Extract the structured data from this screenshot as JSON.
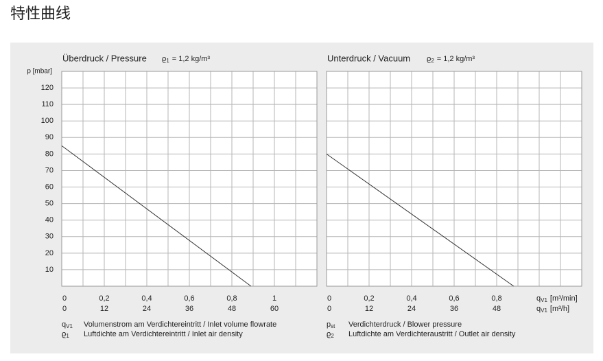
{
  "title": "特性曲线",
  "chart_data": [
    {
      "type": "line",
      "title": "Überdruck / Pressure",
      "density": {
        "symbol": "ϱ",
        "sub": "1",
        "text": "= 1,2 kg/m³"
      },
      "ylabel": "p [mbar]",
      "ytick_labels": true,
      "x": [
        0,
        0.89
      ],
      "values": [
        85,
        0
      ],
      "color": "#333333",
      "xlim": [
        0,
        1.2
      ],
      "xticks": [
        0,
        {
          "value": 0.2,
          "label": "0,2"
        },
        {
          "value": 0.4,
          "label": "0,4"
        },
        {
          "value": 0.6,
          "label": "0,6"
        },
        {
          "value": 0.8,
          "label": "0,8"
        },
        1
      ],
      "x2lim": [
        0,
        72
      ],
      "x2ticks": [
        0,
        12,
        24,
        36,
        48,
        60
      ],
      "ylim": [
        0,
        130
      ],
      "yticks": [
        10,
        20,
        30,
        40,
        50,
        60,
        70,
        80,
        90,
        100,
        110,
        120
      ],
      "grid": true
    },
    {
      "type": "line",
      "title": "Unterdruck / Vacuum",
      "density": {
        "symbol": "ϱ",
        "sub": "2",
        "text": "= 1,2 kg/m³"
      },
      "ytick_labels": false,
      "x": [
        0,
        0.88
      ],
      "values": [
        80,
        0
      ],
      "color": "#333333",
      "xlim": [
        0,
        1.2
      ],
      "xticks": [
        0,
        {
          "value": 0.2,
          "label": "0,2"
        },
        {
          "value": 0.4,
          "label": "0,4"
        },
        {
          "value": 0.6,
          "label": "0,6"
        },
        {
          "value": 0.8,
          "label": "0,8"
        }
      ],
      "x2lim": [
        0,
        72
      ],
      "x2ticks": [
        0,
        12,
        24,
        36,
        48
      ],
      "xlabel": {
        "symbol": "q",
        "sub": "V1",
        "text": "[m³/min]"
      },
      "x2label": {
        "symbol": "q",
        "sub": "V1",
        "text": "[m³/h]"
      },
      "ylim": [
        0,
        130
      ],
      "yticks": [
        10,
        20,
        30,
        40,
        50,
        60,
        70,
        80,
        90,
        100,
        110,
        120
      ],
      "grid": true
    }
  ],
  "notes": [
    [
      {
        "symbol": "q",
        "sub": "V1",
        "text": "Volumenstrom am Verdichtereintritt / Inlet volume flowrate"
      },
      {
        "symbol": "ϱ",
        "sub": "1",
        "text": "Luftdichte am Verdichtereintritt / Inlet air density"
      }
    ],
    [
      {
        "symbol": "p",
        "sub": "st",
        "text": "Verdichterdruck / Blower pressure"
      },
      {
        "symbol": "ϱ",
        "sub": "2",
        "text": "Luftdichte am Verdichteraustritt / Outlet air density"
      }
    ]
  ]
}
